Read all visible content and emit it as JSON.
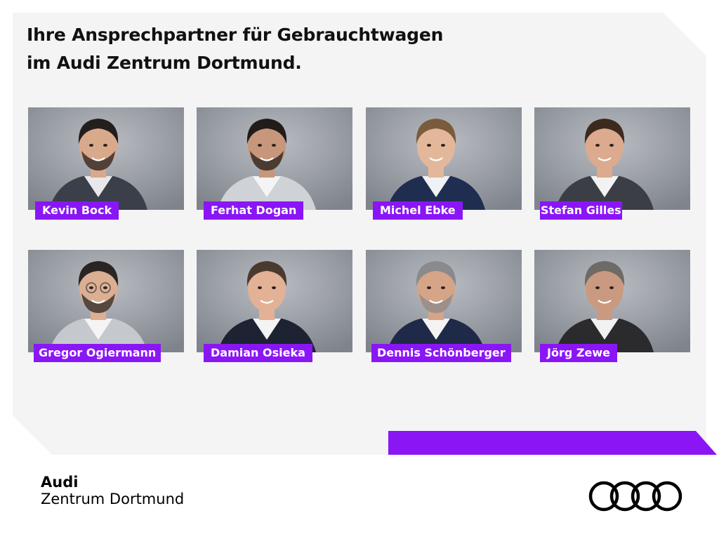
{
  "headline": {
    "line1": "Ihre Ansprechpartner für Gebrauchtwagen",
    "line2": "im Audi Zentrum Dortmund."
  },
  "contacts": [
    {
      "name": "Kevin Bock",
      "jacket": "#3a3f4a",
      "shirt": "#e8e8ea",
      "hair": "#231f1c",
      "skin": "#d9a98c",
      "beard": true,
      "glasses": false
    },
    {
      "name": "Ferhat Dogan",
      "jacket": "#cfd2d6",
      "shirt": "#f4f4f4",
      "hair": "#211c19",
      "skin": "#c8967a",
      "beard": true,
      "glasses": false
    },
    {
      "name": "Michel Ebke",
      "jacket": "#1f2e50",
      "shirt": "#eef1f5",
      "hair": "#7a5b3c",
      "skin": "#e3b89a",
      "beard": false,
      "glasses": false
    },
    {
      "name": "Stefan Gilles",
      "jacket": "#3b3e45",
      "shirt": "#f2f2f2",
      "hair": "#3d2a1e",
      "skin": "#dcaa8e",
      "beard": false,
      "glasses": false
    },
    {
      "name": "Gregor Ogiermann",
      "jacket": "#c5c9ce",
      "shirt": "#f4f4f4",
      "hair": "#2a2522",
      "skin": "#dcae92",
      "beard": true,
      "glasses": true
    },
    {
      "name": "Damian Osieka",
      "jacket": "#1e2333",
      "shirt": "#f3f3f3",
      "hair": "#4a3a2e",
      "skin": "#e2b196",
      "beard": false,
      "glasses": false
    },
    {
      "name": "Dennis Schönberger",
      "jacket": "#1f2a48",
      "shirt": "#f3f3f3",
      "hair": "#8a8a8c",
      "skin": "#d6a487",
      "beard": true,
      "glasses": false
    },
    {
      "name": "Jörg Zewe",
      "jacket": "#2b2b2e",
      "shirt": "#f1f1f1",
      "hair": "#6e6a66",
      "skin": "#c99a80",
      "beard": false,
      "glasses": false
    }
  ],
  "footer": {
    "brand": "Audi",
    "location": "Zentrum Dortmund",
    "logo_icon": "audi-four-rings-icon"
  },
  "colors": {
    "accent": "#8a16f6",
    "panel": "#f4f4f5",
    "photo_bg": "#7f848c"
  }
}
